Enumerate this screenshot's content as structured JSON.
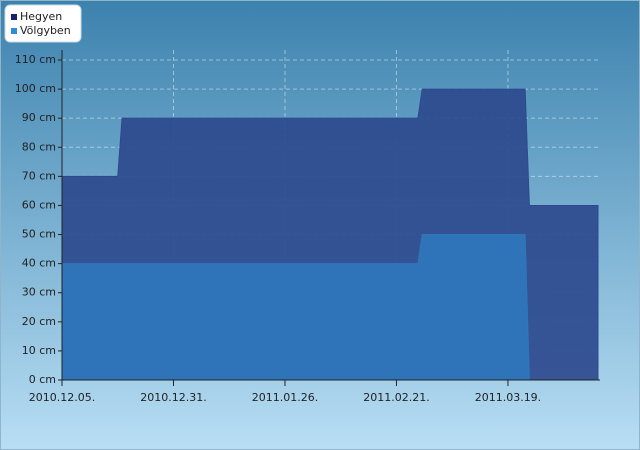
{
  "chart_data": {
    "type": "area",
    "x": [
      "2010.12.05.",
      "2010.12.18.",
      "2010.12.19.",
      "2011.02.26.",
      "2011.02.27.",
      "2011.03.23.",
      "2011.03.24.",
      "2011.04.09."
    ],
    "series": [
      {
        "name": "Hegyen",
        "color": "#2d4a8e",
        "values": [
          70,
          70,
          90,
          90,
          100,
          100,
          60,
          60
        ]
      },
      {
        "name": "Völgyben",
        "color": "#2f77bb",
        "values": [
          40,
          40,
          40,
          40,
          50,
          50,
          0,
          0
        ]
      }
    ],
    "xlim": [
      "2010.12.05.",
      "2011.04.09."
    ],
    "xticks": [
      "2010.12.05.",
      "2010.12.31.",
      "2011.01.26.",
      "2011.02.21.",
      "2011.03.19."
    ],
    "ylim": [
      0,
      110
    ],
    "yticks": [
      {
        "value": 0,
        "label": "0 cm"
      },
      {
        "value": 10,
        "label": "10 cm"
      },
      {
        "value": 20,
        "label": "20 cm"
      },
      {
        "value": 30,
        "label": "30 cm"
      },
      {
        "value": 40,
        "label": "40 cm"
      },
      {
        "value": 50,
        "label": "50 cm"
      },
      {
        "value": 60,
        "label": "60 cm"
      },
      {
        "value": 70,
        "label": "70 cm"
      },
      {
        "value": 80,
        "label": "80 cm"
      },
      {
        "value": 90,
        "label": "90 cm"
      },
      {
        "value": 100,
        "label": "100 cm"
      },
      {
        "value": 110,
        "label": "110 cm"
      }
    ],
    "grid": true,
    "legend": "top-left"
  }
}
